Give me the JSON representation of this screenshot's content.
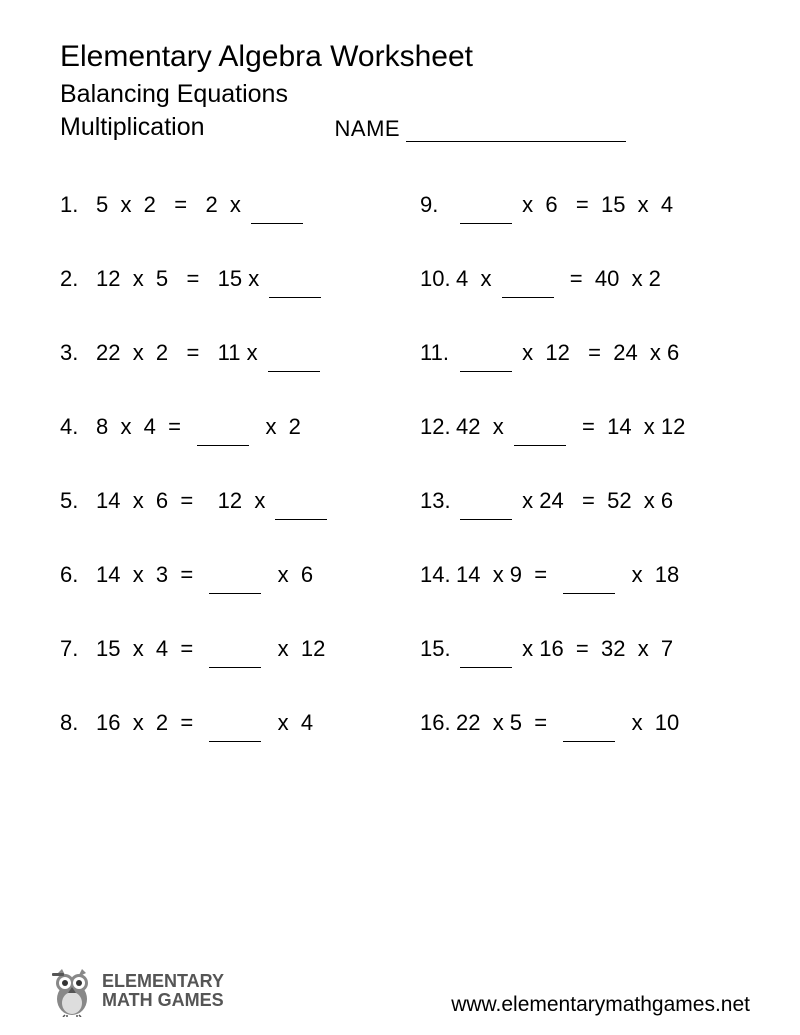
{
  "header": {
    "title": "Elementary Algebra Worksheet",
    "subtitle": "Balancing Equations",
    "topic": "Multiplication",
    "name_label": "NAME"
  },
  "problems_left": [
    {
      "num": "1.",
      "parts": [
        "5  x  2   =   2  x ",
        "BLANK"
      ]
    },
    {
      "num": "2.",
      "parts": [
        "12  x  5   =   15 x ",
        "BLANK"
      ]
    },
    {
      "num": "3.",
      "parts": [
        "22  x  2   =   11 x ",
        "BLANK"
      ]
    },
    {
      "num": "4.",
      "parts": [
        "8  x  4  =  ",
        "BLANK",
        "  x  2"
      ]
    },
    {
      "num": "5.",
      "parts": [
        "14  x  6  =    12  x ",
        "BLANK"
      ]
    },
    {
      "num": "6.",
      "parts": [
        "14  x  3  =  ",
        "BLANK",
        "  x  6"
      ]
    },
    {
      "num": "7.",
      "parts": [
        "15  x  4  =  ",
        "BLANK",
        "  x  12"
      ]
    },
    {
      "num": "8.",
      "parts": [
        "16  x  2  =  ",
        "BLANK",
        "  x  4"
      ]
    }
  ],
  "problems_right": [
    {
      "num": "9.",
      "parts": [
        "BLANK",
        " x  6   =  15  x  4"
      ]
    },
    {
      "num": "10.",
      "parts": [
        "4  x ",
        "BLANK",
        "  =  40  x 2"
      ]
    },
    {
      "num": "11.",
      "parts": [
        "BLANK",
        " x  12   =  24  x 6"
      ]
    },
    {
      "num": "12.",
      "parts": [
        "42  x ",
        "BLANK",
        "  =  14  x 12"
      ]
    },
    {
      "num": "13.",
      "parts": [
        "BLANK",
        " x 24   =  52  x 6"
      ]
    },
    {
      "num": "14.",
      "parts": [
        "14  x 9  =  ",
        "BLANK",
        "  x  18"
      ]
    },
    {
      "num": "15.",
      "parts": [
        "BLANK",
        " x 16  =  32  x  7"
      ]
    },
    {
      "num": "16.",
      "parts": [
        "22  x 5  =  ",
        "BLANK",
        "  x  10"
      ]
    }
  ],
  "footer": {
    "logo_line1": "ELEMENTARY",
    "logo_line2": "MATH GAMES",
    "url": "www.elementarymathgames.net"
  }
}
